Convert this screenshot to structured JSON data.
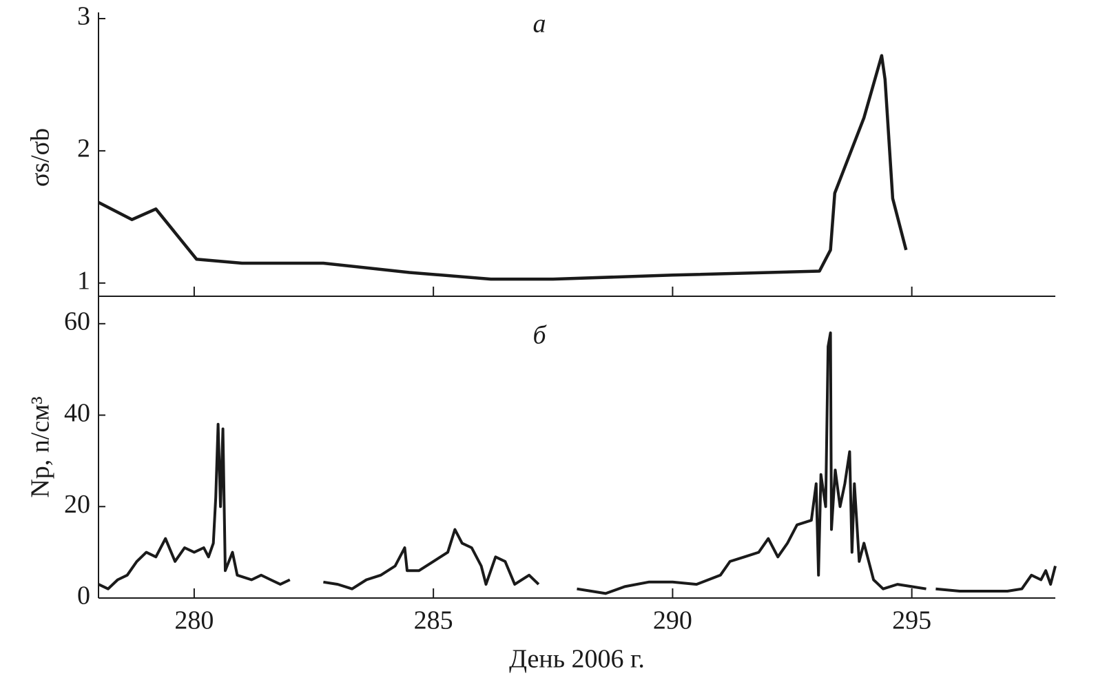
{
  "chart_data": [
    {
      "type": "line",
      "annotation": "а",
      "ylabel": "σs/σb",
      "color": "#1a1a1a",
      "xlim": [
        278,
        298
      ],
      "xticks": [
        280,
        285,
        290,
        295
      ],
      "ylim": [
        0.9,
        3.0
      ],
      "yticks": [
        1,
        2,
        3
      ],
      "x": [
        278.0,
        278.7,
        279.2,
        280.05,
        281.0,
        282.7,
        284.5,
        286.2,
        287.5,
        290.0,
        293.07,
        293.3,
        293.39,
        294.0,
        294.37,
        294.44,
        294.6,
        294.88
      ],
      "values": [
        1.61,
        1.48,
        1.56,
        1.18,
        1.15,
        1.15,
        1.08,
        1.03,
        1.03,
        1.06,
        1.09,
        1.25,
        1.68,
        2.25,
        2.72,
        2.54,
        1.64,
        1.25
      ]
    },
    {
      "type": "line",
      "annotation": "б",
      "ylabel": "Np, n/см³",
      "xlabel": "День 2006 г.",
      "color": "#1a1a1a",
      "xlim": [
        278,
        298
      ],
      "xticks": [
        280,
        285,
        290,
        295
      ],
      "ylim": [
        0,
        66
      ],
      "yticks": [
        0,
        20,
        40,
        60
      ],
      "x": [
        278.0,
        278.2,
        278.4,
        278.6,
        278.8,
        279.0,
        279.2,
        279.4,
        279.6,
        279.8,
        280.0,
        280.2,
        280.3,
        280.4,
        280.45,
        280.5,
        280.55,
        280.6,
        280.65,
        280.8,
        280.9,
        281.2,
        281.4,
        281.6,
        281.8,
        282.0,
        282.35,
        282.7,
        283.0,
        283.3,
        283.6,
        283.9,
        284.2,
        284.4,
        284.45,
        284.7,
        285.0,
        285.3,
        285.45,
        285.6,
        285.8,
        286.0,
        286.1,
        286.3,
        286.5,
        286.7,
        287.0,
        287.2,
        287.6,
        288.0,
        288.3,
        288.6,
        289.0,
        289.5,
        290.0,
        290.5,
        291.0,
        291.2,
        291.5,
        291.8,
        292.0,
        292.2,
        292.4,
        292.6,
        292.9,
        293.0,
        293.05,
        293.1,
        293.2,
        293.25,
        293.3,
        293.32,
        293.4,
        293.5,
        293.6,
        293.7,
        293.75,
        293.8,
        293.9,
        294.0,
        294.2,
        294.4,
        294.7,
        295.0,
        295.3,
        295.4,
        295.5,
        296.0,
        296.5,
        297.0,
        297.3,
        297.5,
        297.7,
        297.8,
        297.9,
        298.0
      ],
      "values": [
        3,
        2,
        4,
        5,
        8,
        10,
        9,
        13,
        8,
        11,
        10,
        11,
        9,
        12,
        22,
        38,
        20,
        37,
        6,
        10,
        5,
        4,
        5,
        4,
        3,
        4,
        null,
        3.5,
        3,
        2,
        4,
        5,
        7,
        11,
        6,
        6,
        8,
        10,
        15,
        12,
        11,
        7,
        3,
        9,
        8,
        3,
        5,
        3,
        null,
        2,
        1.5,
        1,
        2.5,
        3.5,
        3.5,
        3,
        5,
        8,
        9,
        10,
        13,
        9,
        12,
        16,
        17,
        25,
        5,
        27,
        20,
        55,
        58,
        15,
        28,
        20,
        25,
        32,
        10,
        25,
        8,
        12,
        4,
        2,
        3,
        2.5,
        2,
        null,
        2,
        1.5,
        1.5,
        1.5,
        2,
        5,
        4,
        6,
        3,
        7
      ]
    }
  ]
}
